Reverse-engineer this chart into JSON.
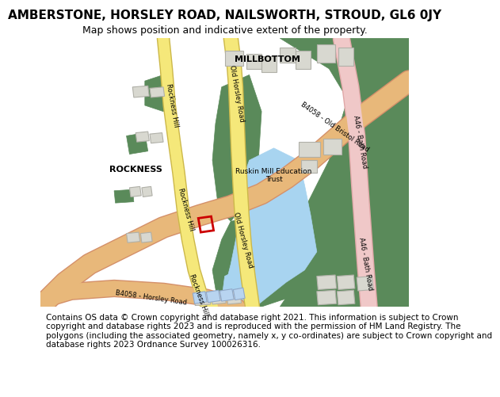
{
  "title": "AMBERSTONE, HORSLEY ROAD, NAILSWORTH, STROUD, GL6 0JY",
  "subtitle": "Map shows position and indicative extent of the property.",
  "footer": "Contains OS data © Crown copyright and database right 2021. This information is subject to Crown copyright and database rights 2023 and is reproduced with the permission of HM Land Registry. The polygons (including the associated geometry, namely x, y co-ordinates) are subject to Crown copyright and database rights 2023 Ordnance Survey 100026316.",
  "bg_color": "#f5f5f0",
  "map_bg": "#f8f8f5",
  "green_color": "#5a8a5a",
  "light_green": "#7ab87a",
  "road_yellow": "#f5e87a",
  "road_orange": "#e8b87a",
  "road_pink": "#f0c8c8",
  "road_outline": "#ccb84a",
  "water_blue": "#a8d4f0",
  "building_gray": "#d8d8d0",
  "building_outline": "#b0b0a8",
  "red_plot": "#cc0000",
  "title_fontsize": 11,
  "subtitle_fontsize": 9,
  "footer_fontsize": 7.5
}
